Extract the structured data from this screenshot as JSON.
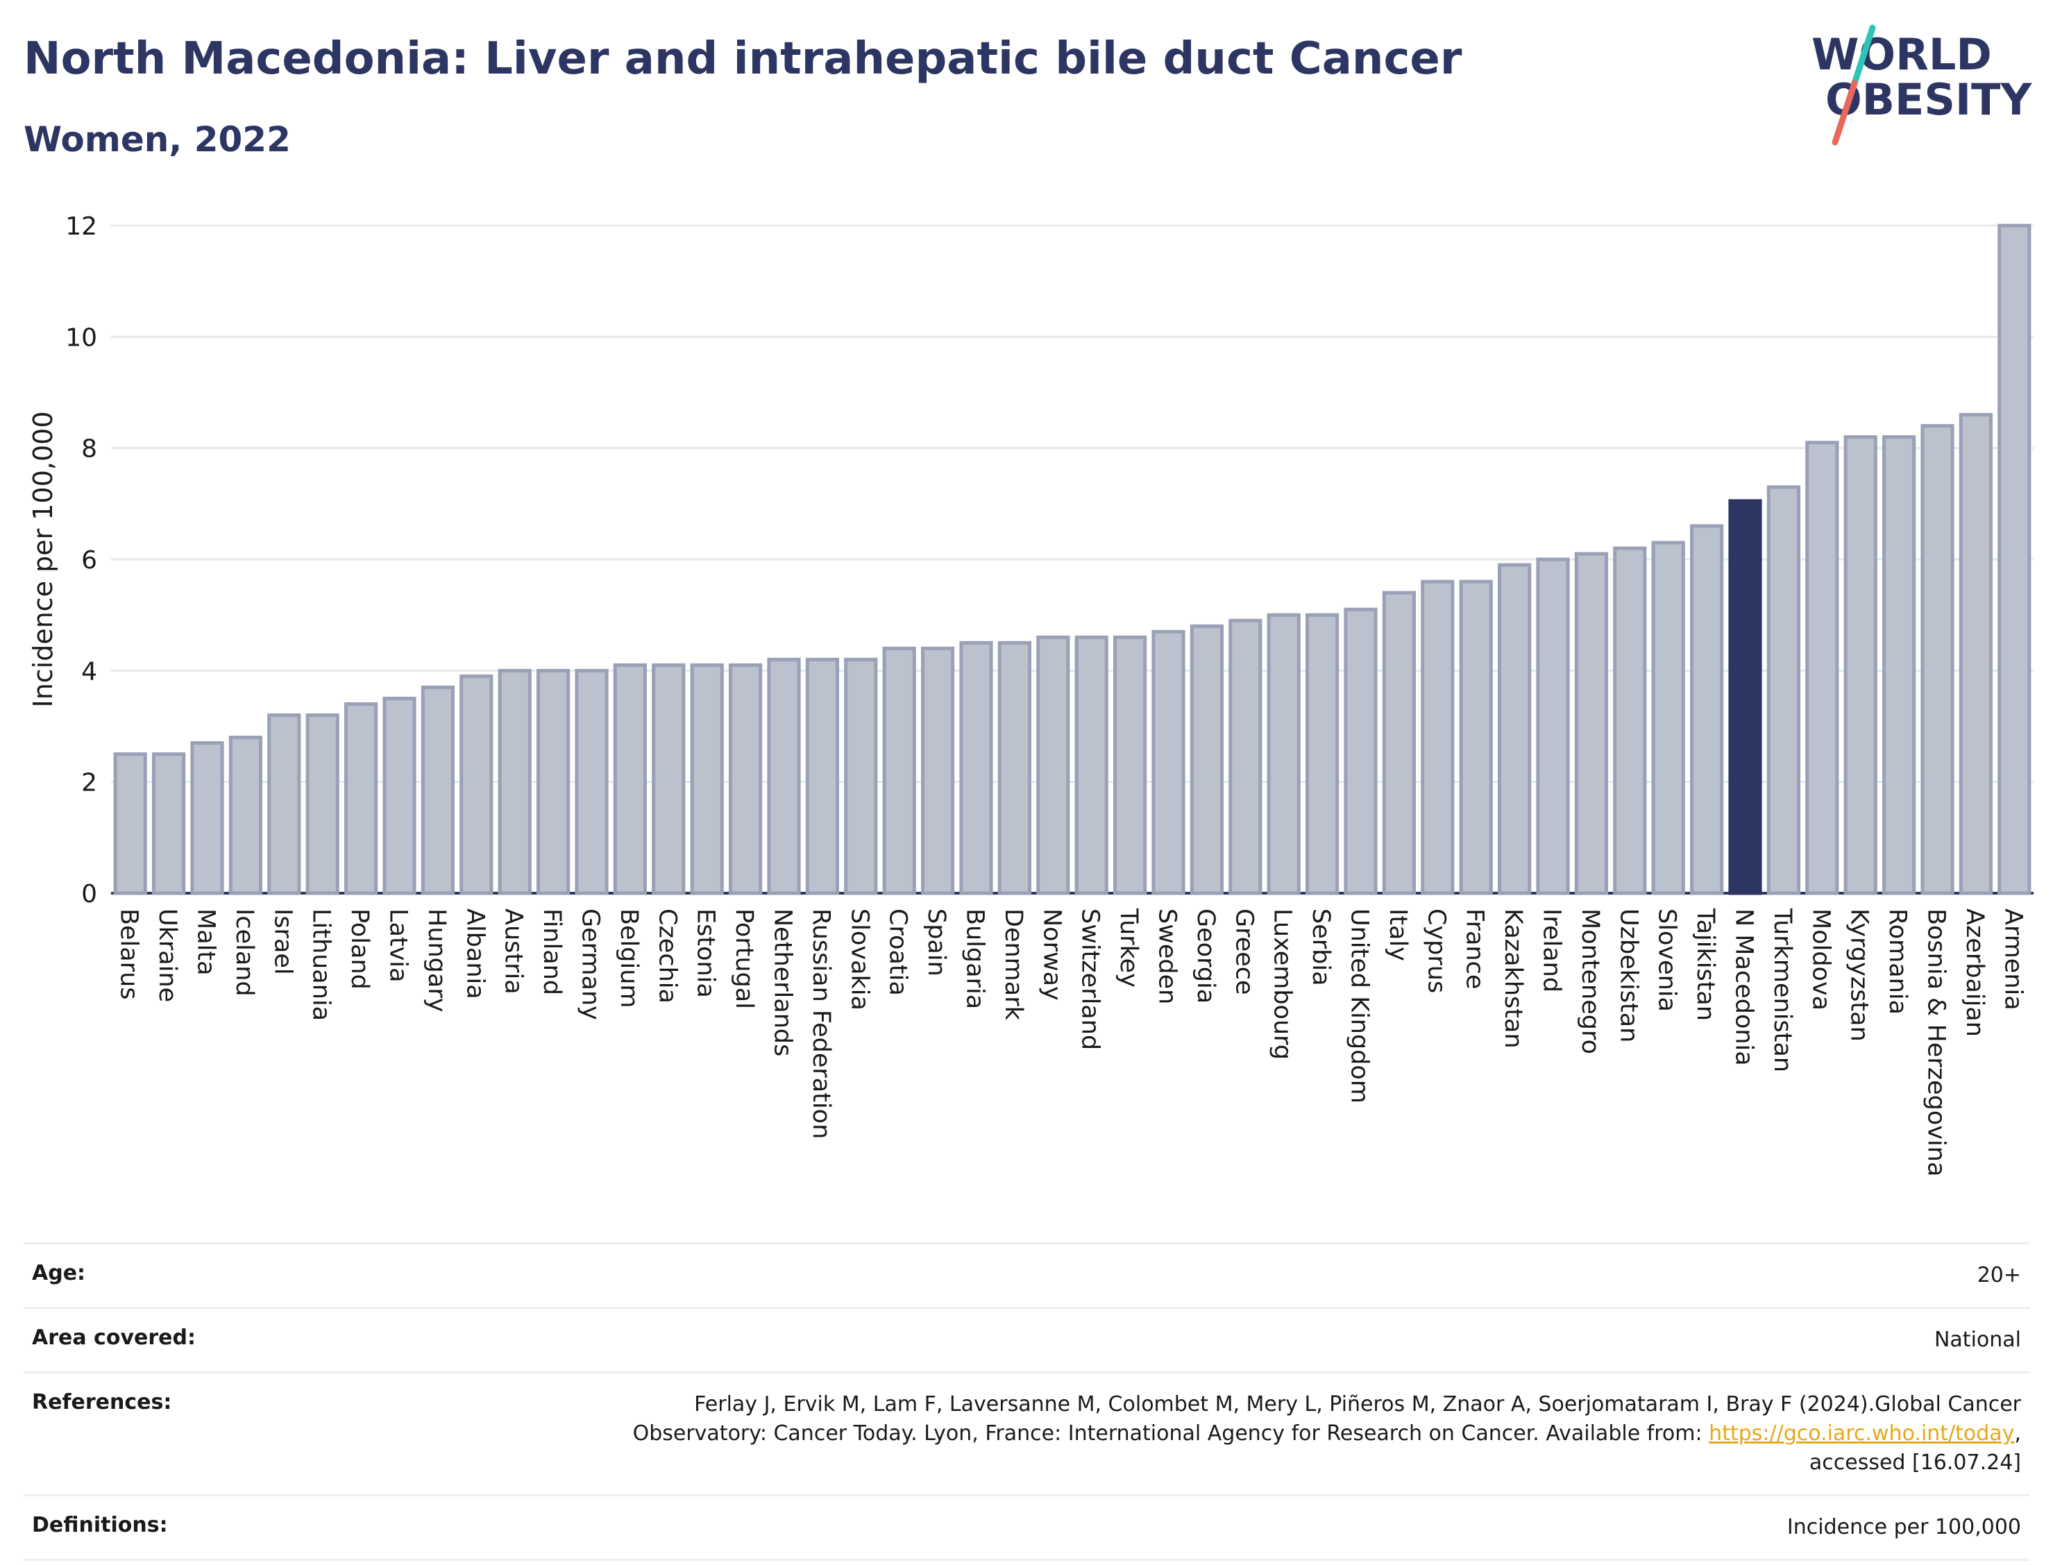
{
  "header": {
    "title": "North Macedonia: Liver and intrahepatic bile duct Cancer",
    "subtitle": "Women, 2022"
  },
  "logo": {
    "line1": "WORLD",
    "line2": "OBESITY",
    "colors": {
      "text": "#2d3663",
      "slash_top": "#2ec4b6",
      "slash_bottom": "#e8685a"
    }
  },
  "chart_data": {
    "type": "bar",
    "title": "North Macedonia: Liver and intrahepatic bile duct Cancer",
    "subtitle": "Women, 2022",
    "xlabel": "",
    "ylabel": "Incidence per 100,000",
    "ylim": [
      0,
      12
    ],
    "yticks": [
      0,
      2,
      4,
      6,
      8,
      10,
      12
    ],
    "grid": true,
    "highlight": "N Macedonia",
    "colors": {
      "bar": "#bcc1ce",
      "bar_edge": "#9aa0b6",
      "highlight": "#2d3663",
      "grid": "#e6e8ee"
    },
    "categories": [
      "Belarus",
      "Ukraine",
      "Malta",
      "Iceland",
      "Israel",
      "Lithuania",
      "Poland",
      "Latvia",
      "Hungary",
      "Albania",
      "Austria",
      "Finland",
      "Germany",
      "Belgium",
      "Czechia",
      "Estonia",
      "Portugal",
      "Netherlands",
      "Russian Federation",
      "Slovakia",
      "Croatia",
      "Spain",
      "Bulgaria",
      "Denmark",
      "Norway",
      "Switzerland",
      "Turkey",
      "Sweden",
      "Georgia",
      "Greece",
      "Luxembourg",
      "Serbia",
      "United Kingdom",
      "Italy",
      "Cyprus",
      "France",
      "Kazakhstan",
      "Ireland",
      "Montenegro",
      "Uzbekistan",
      "Slovenia",
      "Tajikistan",
      "N Macedonia",
      "Turkmenistan",
      "Moldova",
      "Kyrgyzstan",
      "Romania",
      "Bosnia & Herzegovina",
      "Azerbaijan",
      "Armenia"
    ],
    "values": [
      2.5,
      2.5,
      2.7,
      2.8,
      3.2,
      3.2,
      3.4,
      3.5,
      3.7,
      3.9,
      4.0,
      4.0,
      4.0,
      4.1,
      4.1,
      4.1,
      4.1,
      4.2,
      4.2,
      4.2,
      4.4,
      4.4,
      4.5,
      4.5,
      4.6,
      4.6,
      4.6,
      4.7,
      4.8,
      4.9,
      5.0,
      5.0,
      5.1,
      5.4,
      5.6,
      5.6,
      5.9,
      6.0,
      6.1,
      6.2,
      6.3,
      6.6,
      7.05,
      7.3,
      8.1,
      8.2,
      8.2,
      8.4,
      8.6,
      12.0
    ]
  },
  "meta": {
    "age_label": "Age:",
    "age_value": "20+",
    "area_label": "Area covered:",
    "area_value": "National",
    "references_label": "References:",
    "references_line1": "Ferlay J, Ervik M, Lam F, Laversanne M, Colombet M, Mery L, Piñeros M, Znaor A, Soerjomataram I, Bray F (2024).Global Cancer",
    "references_line2_pre": "Observatory: Cancer Today. Lyon, France: International Agency for Research on Cancer. Available from: ",
    "references_link": "https://gco.iarc.who.int/today",
    "references_line2_post": ",",
    "references_line3": "accessed [16.07.24]",
    "definitions_label": "Definitions:",
    "definitions_value": "Incidence per 100,000"
  }
}
